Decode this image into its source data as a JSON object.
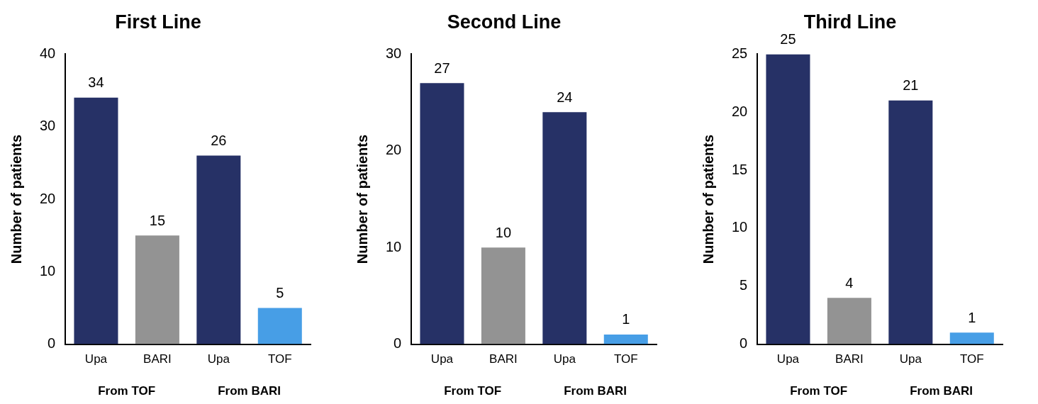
{
  "chart_data": [
    {
      "type": "bar",
      "title": "First Line",
      "ylabel": "Number of patients",
      "categories": [
        "Upa",
        "BARI",
        "Upa",
        "TOF"
      ],
      "values": [
        34,
        15,
        26,
        5
      ],
      "colors": [
        "#263166",
        "#939393",
        "#263166",
        "#479ee6"
      ],
      "ylim": [
        0,
        40
      ],
      "yticks": [
        0,
        10,
        20,
        30,
        40
      ],
      "data_labels": true,
      "grid": false,
      "legend": false,
      "annotations": [
        "From TOF",
        "From BARI"
      ]
    },
    {
      "type": "bar",
      "title": "Second Line",
      "ylabel": "Number of patients",
      "categories": [
        "Upa",
        "BARI",
        "Upa",
        "TOF"
      ],
      "values": [
        27,
        10,
        24,
        1
      ],
      "colors": [
        "#263166",
        "#939393",
        "#263166",
        "#479ee6"
      ],
      "ylim": [
        0,
        30
      ],
      "yticks": [
        0,
        10,
        20,
        30
      ],
      "data_labels": true,
      "grid": false,
      "legend": false,
      "annotations": [
        "From TOF",
        "From BARI"
      ]
    },
    {
      "type": "bar",
      "title": "Third Line",
      "ylabel": "Number of patients",
      "categories": [
        "Upa",
        "BARI",
        "Upa",
        "TOF"
      ],
      "values": [
        25,
        4,
        21,
        1
      ],
      "colors": [
        "#263166",
        "#939393",
        "#263166",
        "#479ee6"
      ],
      "ylim": [
        0,
        25
      ],
      "yticks": [
        0,
        5,
        10,
        15,
        20,
        25
      ],
      "data_labels": true,
      "grid": false,
      "legend": false,
      "annotations": [
        "From TOF",
        "From BARI"
      ]
    }
  ]
}
